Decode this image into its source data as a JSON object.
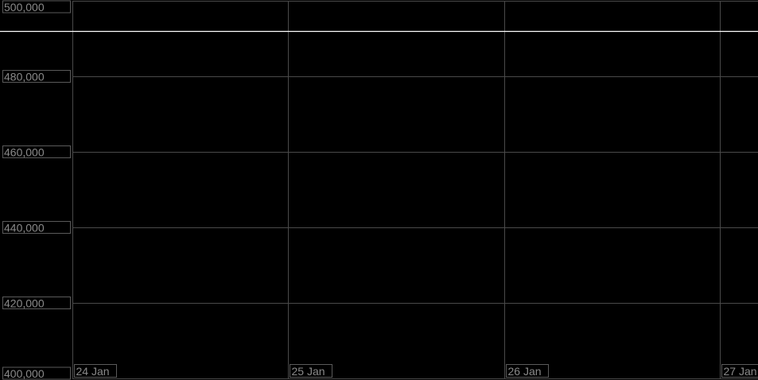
{
  "chart_data": {
    "type": "line",
    "title": "",
    "xlabel": "",
    "ylabel": "",
    "x_ticks": [
      "24 Jan",
      "25 Jan",
      "26 Jan",
      "27 Jan"
    ],
    "y_ticks": [
      "500,000",
      "480,000",
      "460,000",
      "440,000",
      "420,000",
      "400,000"
    ],
    "y_tick_values": [
      500000,
      480000,
      460000,
      440000,
      420000,
      400000
    ],
    "ylim": [
      400000,
      500000
    ],
    "grid": true,
    "background": "#000000",
    "series": [
      {
        "values": [
          492000,
          492000
        ],
        "x": [
          "before 24 Jan",
          "after 27 Jan"
        ],
        "color": "#ffffff"
      }
    ]
  }
}
